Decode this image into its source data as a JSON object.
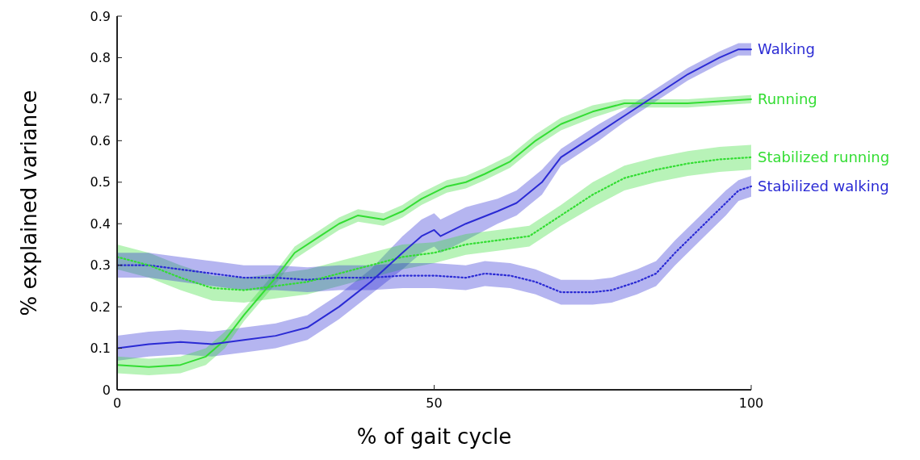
{
  "chart_data": {
    "type": "line",
    "xlabel": "% of gait cycle",
    "ylabel": "% explained variance",
    "xlim": [
      0,
      100
    ],
    "xticks": [
      0,
      50,
      100
    ],
    "ylim": [
      0,
      0.9
    ],
    "yticks": [
      0,
      0.1,
      0.2,
      0.3,
      0.4,
      0.5,
      0.6,
      0.7,
      0.8,
      0.9
    ],
    "grid": false,
    "series": [
      {
        "name": "Walking",
        "color": "#2a2ad4",
        "line_style": "solid",
        "x": [
          0,
          5,
          10,
          15,
          20,
          25,
          30,
          35,
          40,
          45,
          48,
          50,
          51,
          55,
          60,
          63,
          67,
          70,
          72,
          76,
          80,
          85,
          90,
          95,
          98,
          100
        ],
        "values": [
          0.1,
          0.11,
          0.115,
          0.11,
          0.12,
          0.13,
          0.15,
          0.2,
          0.26,
          0.33,
          0.37,
          0.385,
          0.37,
          0.4,
          0.43,
          0.45,
          0.5,
          0.56,
          0.58,
          0.62,
          0.66,
          0.71,
          0.76,
          0.8,
          0.82,
          0.82
        ],
        "lower": [
          0.07,
          0.08,
          0.085,
          0.08,
          0.09,
          0.1,
          0.12,
          0.17,
          0.23,
          0.29,
          0.33,
          0.345,
          0.33,
          0.36,
          0.4,
          0.42,
          0.47,
          0.54,
          0.56,
          0.6,
          0.645,
          0.695,
          0.745,
          0.785,
          0.805,
          0.805
        ],
        "upper": [
          0.13,
          0.14,
          0.145,
          0.14,
          0.15,
          0.16,
          0.18,
          0.23,
          0.29,
          0.37,
          0.41,
          0.425,
          0.41,
          0.44,
          0.46,
          0.48,
          0.53,
          0.58,
          0.6,
          0.64,
          0.675,
          0.725,
          0.775,
          0.815,
          0.835,
          0.835
        ]
      },
      {
        "name": "Running",
        "color": "#33dd33",
        "line_style": "solid",
        "x": [
          0,
          5,
          10,
          14,
          17,
          20,
          25,
          28,
          32,
          35,
          38,
          42,
          45,
          48,
          52,
          55,
          58,
          62,
          66,
          70,
          75,
          80,
          85,
          90,
          95,
          100
        ],
        "values": [
          0.06,
          0.055,
          0.06,
          0.08,
          0.12,
          0.18,
          0.27,
          0.33,
          0.37,
          0.4,
          0.42,
          0.41,
          0.43,
          0.46,
          0.49,
          0.5,
          0.52,
          0.55,
          0.6,
          0.64,
          0.67,
          0.69,
          0.69,
          0.69,
          0.695,
          0.7
        ],
        "lower": [
          0.04,
          0.035,
          0.04,
          0.06,
          0.1,
          0.165,
          0.255,
          0.315,
          0.355,
          0.385,
          0.405,
          0.395,
          0.415,
          0.445,
          0.475,
          0.485,
          0.505,
          0.535,
          0.585,
          0.625,
          0.655,
          0.68,
          0.68,
          0.68,
          0.685,
          0.69
        ],
        "upper": [
          0.08,
          0.075,
          0.08,
          0.1,
          0.14,
          0.195,
          0.285,
          0.345,
          0.385,
          0.415,
          0.435,
          0.425,
          0.445,
          0.475,
          0.505,
          0.515,
          0.535,
          0.565,
          0.615,
          0.655,
          0.685,
          0.7,
          0.7,
          0.7,
          0.705,
          0.71
        ]
      },
      {
        "name": "Stabilized running",
        "color": "#33dd33",
        "line_style": "dotted",
        "x": [
          0,
          5,
          10,
          15,
          20,
          25,
          30,
          35,
          40,
          45,
          50,
          55,
          60,
          65,
          70,
          75,
          80,
          85,
          90,
          95,
          100
        ],
        "values": [
          0.32,
          0.3,
          0.27,
          0.245,
          0.24,
          0.25,
          0.26,
          0.28,
          0.3,
          0.32,
          0.33,
          0.35,
          0.36,
          0.37,
          0.42,
          0.47,
          0.51,
          0.53,
          0.545,
          0.555,
          0.56
        ],
        "lower": [
          0.29,
          0.27,
          0.24,
          0.215,
          0.21,
          0.22,
          0.23,
          0.25,
          0.27,
          0.29,
          0.305,
          0.325,
          0.335,
          0.345,
          0.395,
          0.44,
          0.48,
          0.5,
          0.515,
          0.525,
          0.53
        ],
        "upper": [
          0.35,
          0.33,
          0.3,
          0.275,
          0.27,
          0.28,
          0.29,
          0.31,
          0.33,
          0.35,
          0.355,
          0.375,
          0.385,
          0.395,
          0.445,
          0.5,
          0.54,
          0.56,
          0.575,
          0.585,
          0.59
        ]
      },
      {
        "name": "Stabilized walking",
        "color": "#2a2ad4",
        "line_style": "dotted",
        "x": [
          0,
          5,
          10,
          15,
          20,
          25,
          30,
          35,
          40,
          45,
          50,
          55,
          58,
          62,
          66,
          70,
          75,
          78,
          82,
          85,
          88,
          92,
          96,
          98,
          100
        ],
        "values": [
          0.3,
          0.3,
          0.29,
          0.28,
          0.27,
          0.27,
          0.265,
          0.27,
          0.27,
          0.275,
          0.275,
          0.27,
          0.28,
          0.275,
          0.26,
          0.235,
          0.235,
          0.24,
          0.26,
          0.28,
          0.33,
          0.39,
          0.45,
          0.48,
          0.49
        ],
        "lower": [
          0.27,
          0.27,
          0.26,
          0.25,
          0.24,
          0.24,
          0.235,
          0.24,
          0.24,
          0.245,
          0.245,
          0.24,
          0.25,
          0.245,
          0.23,
          0.205,
          0.205,
          0.21,
          0.23,
          0.25,
          0.3,
          0.36,
          0.42,
          0.455,
          0.465
        ],
        "upper": [
          0.33,
          0.33,
          0.32,
          0.31,
          0.3,
          0.3,
          0.295,
          0.3,
          0.3,
          0.305,
          0.305,
          0.3,
          0.31,
          0.305,
          0.29,
          0.265,
          0.265,
          0.27,
          0.29,
          0.31,
          0.36,
          0.42,
          0.48,
          0.505,
          0.515
        ]
      }
    ]
  }
}
